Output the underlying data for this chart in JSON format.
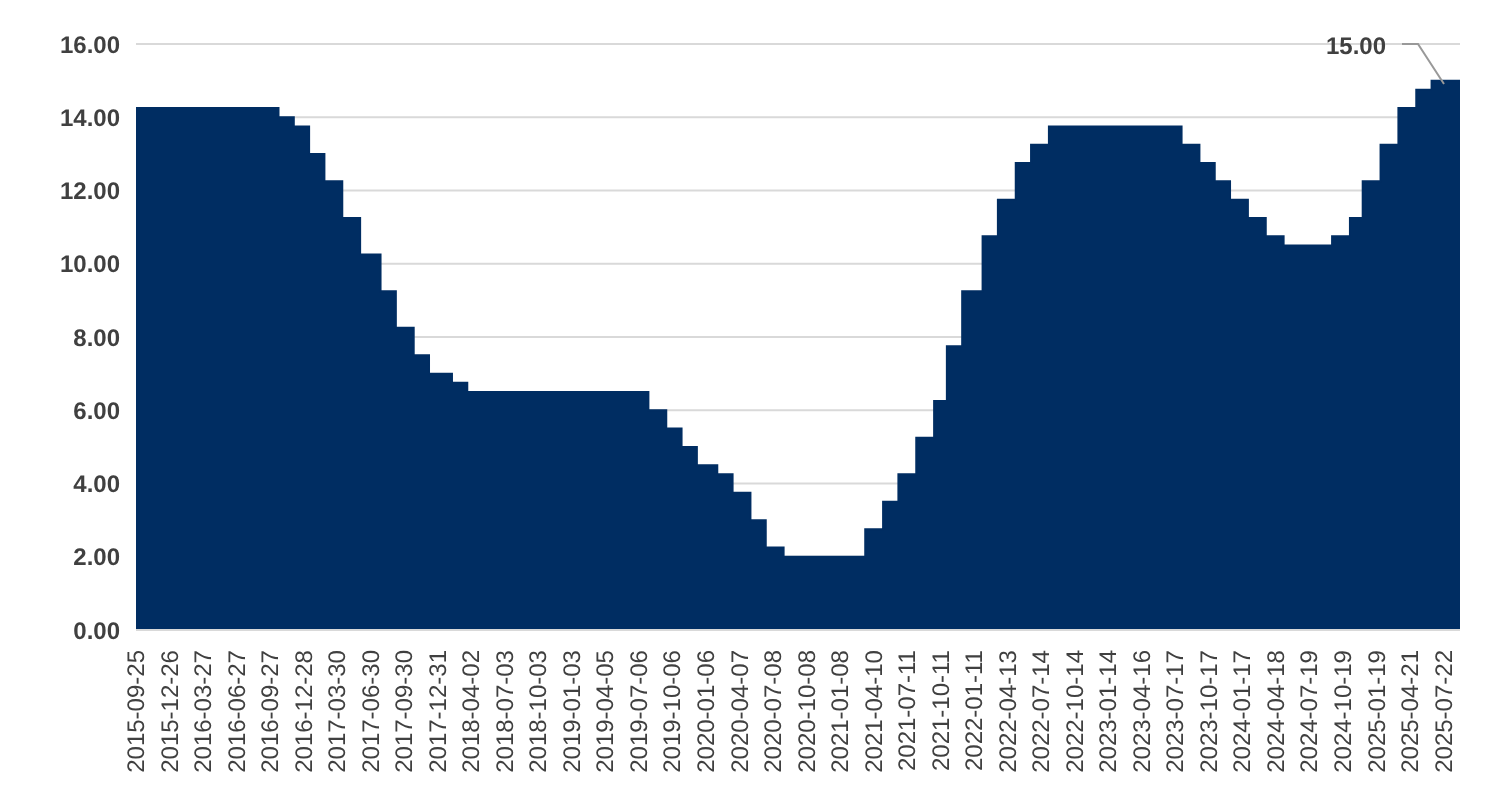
{
  "chart_data": {
    "type": "area",
    "x": [
      "2015-09-25",
      "2016-10-20",
      "2016-10-20",
      "2016-12-01",
      "2016-12-01",
      "2017-01-12",
      "2017-01-12",
      "2017-02-23",
      "2017-02-23",
      "2017-04-13",
      "2017-04-13",
      "2017-06-01",
      "2017-06-01",
      "2017-07-27",
      "2017-07-27",
      "2017-09-07",
      "2017-09-07",
      "2017-10-26",
      "2017-10-26",
      "2017-12-07",
      "2017-12-07",
      "2018-02-08",
      "2018-02-08",
      "2018-03-22",
      "2018-03-22",
      "2019-08-01",
      "2019-08-01",
      "2019-09-19",
      "2019-09-19",
      "2019-10-31",
      "2019-10-31",
      "2019-12-12",
      "2019-12-12",
      "2020-02-06",
      "2020-02-06",
      "2020-03-19",
      "2020-03-19",
      "2020-05-07",
      "2020-05-07",
      "2020-06-18",
      "2020-06-18",
      "2020-08-06",
      "2020-08-06",
      "2021-03-18",
      "2021-03-18",
      "2021-05-06",
      "2021-05-06",
      "2021-06-17",
      "2021-06-17",
      "2021-08-05",
      "2021-08-05",
      "2021-09-23",
      "2021-09-23",
      "2021-10-28",
      "2021-10-28",
      "2021-12-09",
      "2021-12-09",
      "2022-02-03",
      "2022-02-03",
      "2022-03-17",
      "2022-03-17",
      "2022-05-05",
      "2022-05-05",
      "2022-06-16",
      "2022-06-16",
      "2022-08-04",
      "2022-08-04",
      "2023-08-03",
      "2023-08-03",
      "2023-09-21",
      "2023-09-21",
      "2023-11-02",
      "2023-11-02",
      "2023-12-14",
      "2023-12-14",
      "2024-02-01",
      "2024-02-01",
      "2024-03-21",
      "2024-03-21",
      "2024-05-09",
      "2024-05-09",
      "2024-09-19",
      "2024-09-19",
      "2024-11-07",
      "2024-11-07",
      "2024-12-12",
      "2024-12-12",
      "2025-01-30",
      "2025-01-30",
      "2025-03-20",
      "2025-03-20",
      "2025-05-08",
      "2025-05-08",
      "2025-06-19",
      "2025-06-19",
      "2025-09-05"
    ],
    "series": [
      {
        "color": "#002d62",
        "values": [
          14.25,
          14.25,
          14.0,
          14.0,
          13.75,
          13.75,
          13.0,
          13.0,
          12.25,
          12.25,
          11.25,
          11.25,
          10.25,
          10.25,
          9.25,
          9.25,
          8.25,
          8.25,
          7.5,
          7.5,
          7.0,
          7.0,
          6.75,
          6.75,
          6.5,
          6.5,
          6.0,
          6.0,
          5.5,
          5.5,
          5.0,
          5.0,
          4.5,
          4.5,
          4.25,
          4.25,
          3.75,
          3.75,
          3.0,
          3.0,
          2.25,
          2.25,
          2.0,
          2.0,
          2.75,
          2.75,
          3.5,
          3.5,
          4.25,
          4.25,
          5.25,
          5.25,
          6.25,
          6.25,
          7.75,
          7.75,
          9.25,
          9.25,
          10.75,
          10.75,
          11.75,
          11.75,
          12.75,
          12.75,
          13.25,
          13.25,
          13.75,
          13.75,
          13.25,
          13.25,
          12.75,
          12.75,
          12.25,
          12.25,
          11.75,
          11.75,
          11.25,
          11.25,
          10.75,
          10.75,
          10.5,
          10.5,
          10.75,
          10.75,
          11.25,
          11.25,
          12.25,
          12.25,
          13.25,
          13.25,
          14.25,
          14.25,
          14.75,
          14.75,
          15.0,
          15.0
        ]
      }
    ],
    "xlim": [
      "2015-09-25",
      "2025-09-05"
    ],
    "xticks": [
      "2015-09-25",
      "2015-12-26",
      "2016-03-27",
      "2016-06-27",
      "2016-09-27",
      "2016-12-28",
      "2017-03-30",
      "2017-06-30",
      "2017-09-30",
      "2017-12-31",
      "2018-04-02",
      "2018-07-03",
      "2018-10-03",
      "2019-01-03",
      "2019-04-05",
      "2019-07-06",
      "2019-10-06",
      "2020-01-06",
      "2020-04-07",
      "2020-07-08",
      "2020-10-08",
      "2021-01-08",
      "2021-04-10",
      "2021-07-11",
      "2021-10-11",
      "2022-01-11",
      "2022-04-13",
      "2022-07-14",
      "2022-10-14",
      "2023-01-14",
      "2023-04-16",
      "2023-07-17",
      "2023-10-17",
      "2024-01-17",
      "2024-04-18",
      "2024-07-19",
      "2024-10-19",
      "2025-01-19",
      "2025-04-21",
      "2025-07-22"
    ],
    "ylim": [
      0,
      16
    ],
    "yticks": [
      {
        "value": 0,
        "label": "0.00"
      },
      {
        "value": 2,
        "label": "2.00"
      },
      {
        "value": 4,
        "label": "4.00"
      },
      {
        "value": 6,
        "label": "6.00"
      },
      {
        "value": 8,
        "label": "8.00"
      },
      {
        "value": 10,
        "label": "10.00"
      },
      {
        "value": 12,
        "label": "12.00"
      },
      {
        "value": 14,
        "label": "14.00"
      },
      {
        "value": 16,
        "label": "16.00"
      }
    ],
    "grid": "y",
    "annotations": [
      "15.00"
    ]
  }
}
